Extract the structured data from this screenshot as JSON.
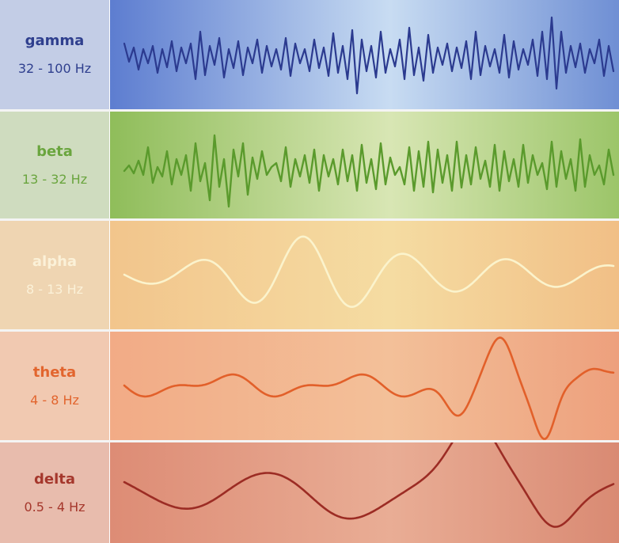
{
  "bands": [
    {
      "id": "gamma",
      "name": "gamma",
      "range": "32 - 100 Hz",
      "text_color": "#2f3f8e",
      "label_bg": "#c3cde6",
      "wave_bg_left": "#5d7dd0",
      "wave_bg_mid": "#c8dcf2",
      "wave_bg_right": "#6f8fd4",
      "wave_color": "#2b3a8f"
    },
    {
      "id": "beta",
      "name": "beta",
      "range": "13 - 32 Hz",
      "text_color": "#6aa53e",
      "label_bg": "#cfdcbf",
      "wave_bg_left": "#8fbd5a",
      "wave_bg_mid": "#d8e6b4",
      "wave_bg_right": "#9cc569",
      "wave_color": "#5a9a2c"
    },
    {
      "id": "alpha",
      "name": "alpha",
      "range": "8 - 13 Hz",
      "text_color": "#fbf1d8",
      "label_bg": "#efd5b2",
      "wave_bg_left": "#f2c58c",
      "wave_bg_mid": "#f5dca2",
      "wave_bg_right": "#f1bf86",
      "wave_color": "#fbf3cc"
    },
    {
      "id": "theta",
      "name": "theta",
      "range": "4 - 8 Hz",
      "text_color": "#e2652e",
      "label_bg": "#f1c9b1",
      "wave_bg_left": "#f2ab86",
      "wave_bg_mid": "#f3c099",
      "wave_bg_right": "#eda07d",
      "wave_color": "#e2602a"
    },
    {
      "id": "delta",
      "name": "delta",
      "range": "0.5 - 4 Hz",
      "text_color": "#a5372c",
      "label_bg": "#e8bcad",
      "wave_bg_left": "#dd8c75",
      "wave_bg_mid": "#e9ad95",
      "wave_bg_right": "#d98a73",
      "wave_color": "#9c2c24"
    }
  ]
}
